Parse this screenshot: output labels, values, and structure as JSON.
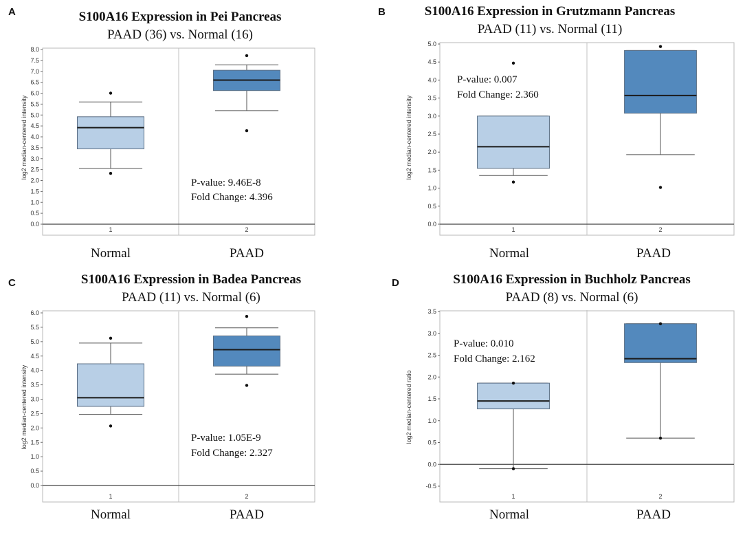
{
  "colors": {
    "normal_box": "#b8cfe6",
    "paad_box": "#5389bd",
    "box_edge": "#5a6e84",
    "whisker": "#555555",
    "outlier": "#111111"
  },
  "chart_data": [
    {
      "panel": "A",
      "type": "boxplot",
      "title": "S100A16 Expression in Pei Pancreas",
      "subtitle": "PAAD (36) vs. Normal (16)",
      "ylabel": "log2 median-centered intensity",
      "ylim": [
        0.0,
        8.0
      ],
      "yticks": [
        "0.0",
        "0.5",
        "1.0",
        "1.5",
        "2.0",
        "2.5",
        "3.0",
        "3.5",
        "4.0",
        "4.5",
        "5.0",
        "5.5",
        "6.0",
        "6.5",
        "7.0",
        "7.5",
        "8.0"
      ],
      "xticks": [
        "1",
        "2"
      ],
      "categories": [
        "Normal",
        "PAAD"
      ],
      "boxes": [
        {
          "name": "Normal",
          "whisker_low": 2.55,
          "q1": 3.45,
          "median": 4.42,
          "q3": 4.92,
          "whisker_high": 5.6,
          "outliers": [
            2.33,
            6.0
          ]
        },
        {
          "name": "PAAD",
          "whisker_low": 5.2,
          "q1": 6.12,
          "median": 6.6,
          "q3": 7.05,
          "whisker_high": 7.3,
          "outliers": [
            4.28,
            7.72
          ]
        }
      ],
      "annotation": {
        "pvalue": "P-value: 9.46E-8",
        "fold": "Fold Change: 4.396",
        "position": "lower-right"
      }
    },
    {
      "panel": "B",
      "type": "boxplot",
      "title": "S100A16 Expression in Grutzmann  Pancreas",
      "subtitle": "PAAD (11) vs. Normal (11)",
      "ylabel": "log2 median-centered intensity",
      "ylim": [
        0.0,
        5.0
      ],
      "yticks": [
        "0.0",
        "0.5",
        "1.0",
        "1.5",
        "2.0",
        "2.5",
        "3.0",
        "3.5",
        "4.0",
        "4.5",
        "5.0"
      ],
      "xticks": [
        "1",
        "2"
      ],
      "categories": [
        "Normal",
        "PAAD"
      ],
      "boxes": [
        {
          "name": "Normal",
          "whisker_low": 1.35,
          "q1": 1.55,
          "median": 2.15,
          "q3": 3.0,
          "whisker_high": 3.0,
          "outliers": [
            1.17,
            4.47
          ]
        },
        {
          "name": "PAAD",
          "whisker_low": 1.93,
          "q1": 3.08,
          "median": 3.57,
          "q3": 4.82,
          "whisker_high": 4.82,
          "outliers": [
            1.02,
            4.93
          ]
        }
      ],
      "annotation": {
        "pvalue": "P-value: 0.007",
        "fold": "Fold Change: 2.360",
        "position": "upper-left"
      }
    },
    {
      "panel": "C",
      "type": "boxplot",
      "title": "S100A16 Expression in Badea Pancreas",
      "subtitle": "PAAD (11) vs. Normal (6)",
      "ylabel": "log2 median-centered intensity",
      "ylim": [
        0.0,
        6.0
      ],
      "yticks": [
        "0.0",
        "0.5",
        "1.0",
        "1.5",
        "2.0",
        "2.5",
        "3.0",
        "3.5",
        "4.0",
        "4.5",
        "5.0",
        "5.5",
        "6.0"
      ],
      "xticks": [
        "1",
        "2"
      ],
      "categories": [
        "Normal",
        "PAAD"
      ],
      "boxes": [
        {
          "name": "Normal",
          "whisker_low": 2.47,
          "q1": 2.75,
          "median": 3.05,
          "q3": 4.23,
          "whisker_high": 4.95,
          "outliers": [
            2.07,
            5.12
          ]
        },
        {
          "name": "PAAD",
          "whisker_low": 3.87,
          "q1": 4.15,
          "median": 4.72,
          "q3": 5.2,
          "whisker_high": 5.48,
          "outliers": [
            3.48,
            5.88
          ]
        }
      ],
      "annotation": {
        "pvalue": "P-value:  1.05E-9",
        "fold": "Fold Change: 2.327",
        "position": "lower-right"
      }
    },
    {
      "panel": "D",
      "type": "boxplot",
      "title": "S100A16 Expression in Buchholz Pancreas",
      "subtitle": "PAAD (8) vs. Normal (6)",
      "ylabel": "log2 median-centered ratio",
      "ylim": [
        -0.5,
        3.5
      ],
      "yticks": [
        "-0.5",
        "0.0",
        "0.5",
        "1.0",
        "1.5",
        "2.0",
        "2.5",
        "3.0",
        "3.5"
      ],
      "xticks": [
        "1",
        "2"
      ],
      "categories": [
        "Normal",
        "PAAD"
      ],
      "boxes": [
        {
          "name": "Normal",
          "whisker_low": -0.1,
          "q1": 1.27,
          "median": 1.45,
          "q3": 1.86,
          "whisker_high": 1.86,
          "outliers": [
            -0.1,
            1.86
          ]
        },
        {
          "name": "PAAD",
          "whisker_low": 0.6,
          "q1": 2.33,
          "median": 2.42,
          "q3": 3.22,
          "whisker_high": 3.22,
          "outliers": [
            0.6,
            3.22
          ]
        }
      ],
      "annotation": {
        "pvalue": "P-value:  0.010",
        "fold": "Fold Change: 2.162",
        "position": "upper-left"
      }
    }
  ]
}
